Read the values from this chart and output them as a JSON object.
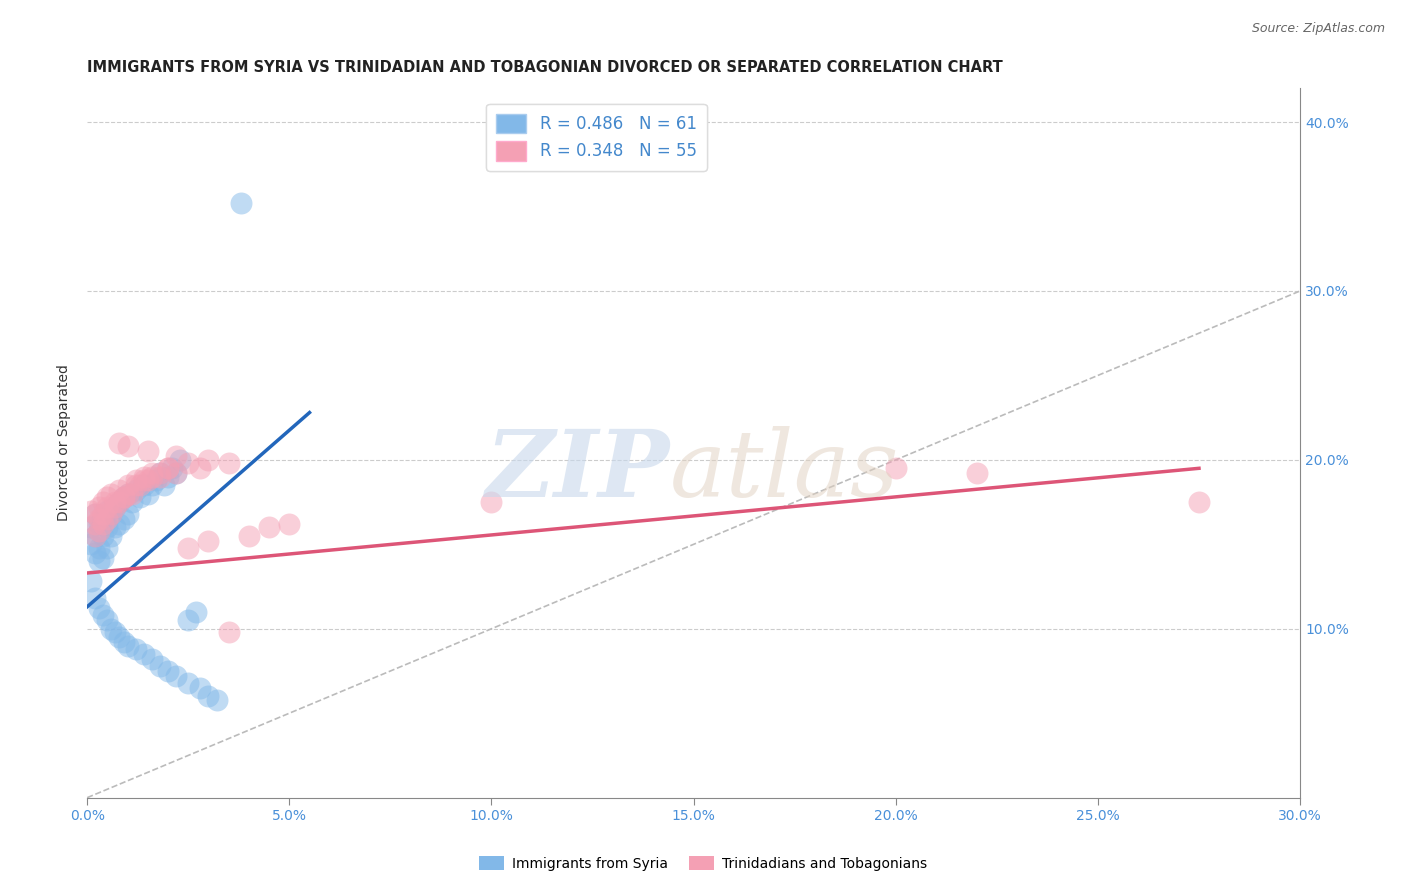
{
  "title": "IMMIGRANTS FROM SYRIA VS TRINIDADIAN AND TOBAGONIAN DIVORCED OR SEPARATED CORRELATION CHART",
  "source": "Source: ZipAtlas.com",
  "ylabel": "Divorced or Separated",
  "legend_label1": "Immigrants from Syria",
  "legend_label2": "Trinidadians and Tobagonians",
  "R1": 0.486,
  "N1": 61,
  "R2": 0.348,
  "N2": 55,
  "xlim": [
    0.0,
    0.3
  ],
  "ylim": [
    0.0,
    0.42
  ],
  "xticks": [
    0.0,
    0.05,
    0.1,
    0.15,
    0.2,
    0.25,
    0.3
  ],
  "yticks": [
    0.1,
    0.2,
    0.3,
    0.4
  ],
  "color_blue": "#82b8e8",
  "color_pink": "#f4a0b4",
  "color_blue_line": "#2266bb",
  "color_pink_line": "#dd5577",
  "blue_scatter_x": [
    0.001,
    0.001,
    0.002,
    0.002,
    0.002,
    0.003,
    0.003,
    0.003,
    0.003,
    0.004,
    0.004,
    0.004,
    0.005,
    0.005,
    0.005,
    0.006,
    0.006,
    0.007,
    0.007,
    0.008,
    0.008,
    0.009,
    0.009,
    0.01,
    0.01,
    0.011,
    0.012,
    0.013,
    0.014,
    0.015,
    0.016,
    0.017,
    0.018,
    0.019,
    0.02,
    0.021,
    0.022,
    0.023,
    0.025,
    0.027,
    0.001,
    0.002,
    0.003,
    0.004,
    0.005,
    0.006,
    0.007,
    0.008,
    0.009,
    0.01,
    0.012,
    0.014,
    0.016,
    0.018,
    0.02,
    0.022,
    0.025,
    0.028,
    0.03,
    0.032,
    0.038
  ],
  "blue_scatter_y": [
    0.16,
    0.15,
    0.168,
    0.155,
    0.145,
    0.162,
    0.158,
    0.148,
    0.14,
    0.165,
    0.155,
    0.142,
    0.17,
    0.16,
    0.148,
    0.168,
    0.155,
    0.172,
    0.16,
    0.175,
    0.162,
    0.178,
    0.165,
    0.18,
    0.168,
    0.175,
    0.182,
    0.178,
    0.185,
    0.18,
    0.185,
    0.188,
    0.192,
    0.185,
    0.19,
    0.195,
    0.192,
    0.2,
    0.105,
    0.11,
    0.128,
    0.118,
    0.112,
    0.108,
    0.105,
    0.1,
    0.098,
    0.095,
    0.092,
    0.09,
    0.088,
    0.085,
    0.082,
    0.078,
    0.075,
    0.072,
    0.068,
    0.065,
    0.06,
    0.058,
    0.352
  ],
  "pink_scatter_x": [
    0.001,
    0.002,
    0.002,
    0.003,
    0.003,
    0.004,
    0.004,
    0.005,
    0.005,
    0.006,
    0.007,
    0.008,
    0.009,
    0.01,
    0.011,
    0.012,
    0.013,
    0.014,
    0.015,
    0.016,
    0.018,
    0.02,
    0.022,
    0.025,
    0.028,
    0.03,
    0.035,
    0.04,
    0.045,
    0.05,
    0.002,
    0.003,
    0.004,
    0.005,
    0.006,
    0.007,
    0.008,
    0.009,
    0.01,
    0.012,
    0.014,
    0.016,
    0.018,
    0.02,
    0.025,
    0.03,
    0.035,
    0.1,
    0.2,
    0.22,
    0.008,
    0.01,
    0.015,
    0.022,
    0.275
  ],
  "pink_scatter_y": [
    0.17,
    0.168,
    0.162,
    0.172,
    0.165,
    0.175,
    0.168,
    0.178,
    0.172,
    0.18,
    0.175,
    0.182,
    0.178,
    0.185,
    0.18,
    0.188,
    0.185,
    0.19,
    0.188,
    0.192,
    0.19,
    0.195,
    0.192,
    0.198,
    0.195,
    0.2,
    0.198,
    0.155,
    0.16,
    0.162,
    0.155,
    0.158,
    0.162,
    0.165,
    0.168,
    0.172,
    0.175,
    0.178,
    0.18,
    0.185,
    0.188,
    0.19,
    0.192,
    0.195,
    0.148,
    0.152,
    0.098,
    0.175,
    0.195,
    0.192,
    0.21,
    0.208,
    0.205,
    0.202,
    0.175
  ],
  "blue_line_x": [
    0.0,
    0.055
  ],
  "blue_line_y": [
    0.113,
    0.228
  ],
  "pink_line_x": [
    0.0,
    0.275
  ],
  "pink_line_y": [
    0.133,
    0.195
  ]
}
